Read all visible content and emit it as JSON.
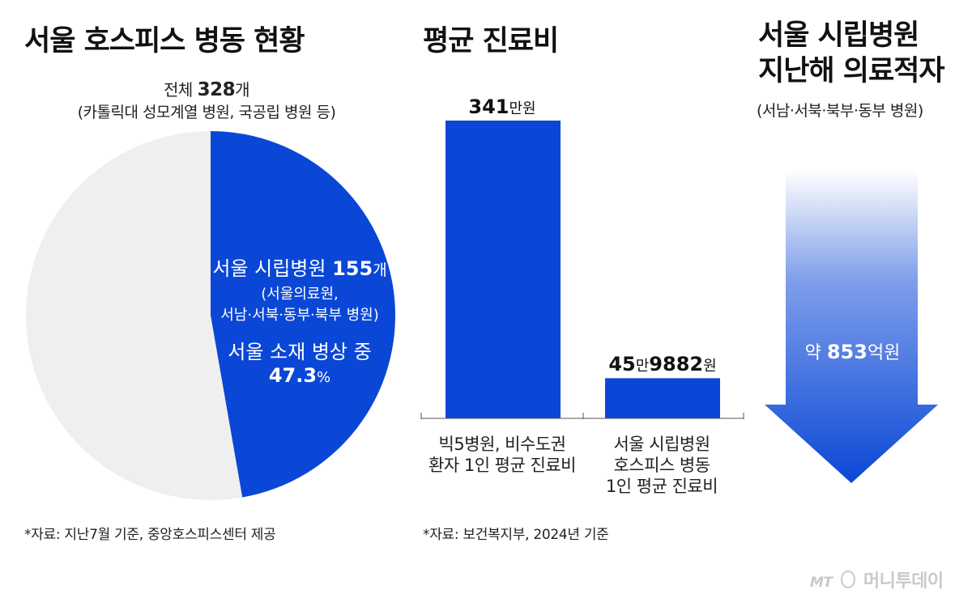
{
  "panels": {
    "pie": {
      "title": "서울 호스피스 병동 현황",
      "total_label": "전체",
      "total_value": "328",
      "total_unit": "개",
      "total_note": "(카톨릭대 성모계열 병원, 국공립 병원 등)",
      "slice_name": "서울 시립병원",
      "slice_value": "155",
      "slice_unit": "개",
      "slice_note_1": "(서울의료원,",
      "slice_note_2": "서남·서북·동부·북부 병원)",
      "share_label": "서울 소재 병상 중",
      "share_value": "47.3",
      "share_unit": "%",
      "source": "*자료: 지난7월 기준, 중앙호스피스센터 제공"
    },
    "bar": {
      "title": "평균 진료비",
      "bar1_value_label": "341",
      "bar1_unit_label": "만원",
      "bar2_value_part1": "45",
      "bar2_unit_part1": "만",
      "bar2_value_part2": "9882",
      "bar2_unit_part2": "원",
      "cat1_line1": "빅5병원, 비수도권",
      "cat1_line2": "환자 1인 평균 진료비",
      "cat2_line1": "서울 시립병원",
      "cat2_line2": "호스피스 병동",
      "cat2_line3": "1인 평균 진료비",
      "source": "*자료: 보건복지부, 2024년 기준"
    },
    "deficit": {
      "title_line1": "서울 시립병원",
      "title_line2": "지난해 의료적자",
      "note": "(서남·서북·북부·동부 병원)",
      "label_prefix": "약",
      "value": "853",
      "unit": "억원"
    }
  },
  "brand": {
    "logo": "MT",
    "name": "머니투데이"
  },
  "colors": {
    "accent": "#0b47d6",
    "pie_rest": "#efefef",
    "text": "#111111"
  },
  "chart_data": [
    {
      "type": "pie",
      "categories": [
        "서울 시립병원",
        ""
      ],
      "values": [
        155,
        173
      ],
      "title": "서울 호스피스 병동 현황"
    },
    {
      "type": "bar",
      "categories": [
        "빅5병원, 비수도권 환자 1인 평균 진료비",
        "서울 시립병원 호스피스 병동 1인 평균 진료비"
      ],
      "values": [
        3410000,
        459882
      ],
      "title": "평균 진료비",
      "ylim": [
        0,
        3410000
      ]
    }
  ]
}
